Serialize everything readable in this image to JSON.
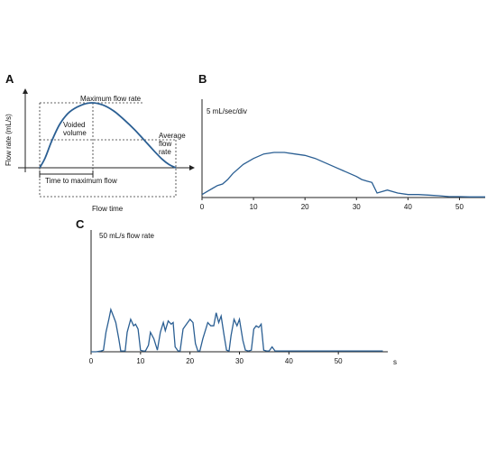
{
  "chart_data": [
    {
      "panel": "A",
      "type": "line",
      "ylabel": "Flow rate (mL/s)",
      "xlabel": "Flow time",
      "annotations": {
        "max": "Maximum flow rate",
        "voided": [
          "Voided",
          "volume"
        ],
        "average": [
          "Average",
          "flow",
          "rate"
        ],
        "ttm": "Time to maximum flow"
      },
      "x": [
        0,
        0.04,
        0.09,
        0.15,
        0.22,
        0.3,
        0.38,
        0.46,
        0.54,
        0.62,
        0.7,
        0.77,
        0.84,
        0.9,
        0.95,
        1.0
      ],
      "values": [
        0,
        0.15,
        0.42,
        0.68,
        0.86,
        0.96,
        1.0,
        0.97,
        0.88,
        0.74,
        0.58,
        0.42,
        0.26,
        0.13,
        0.05,
        0
      ]
    },
    {
      "panel": "B",
      "type": "line",
      "ylabel": "5 mL/sec/div",
      "xticks": [
        "0",
        "10",
        "20",
        "30",
        "40",
        "50"
      ],
      "xlim": [
        0,
        55
      ],
      "ylim": [
        0,
        30
      ],
      "x": [
        0,
        1,
        2,
        3,
        4,
        5,
        6,
        8,
        10,
        12,
        14,
        16,
        18,
        20,
        22,
        24,
        26,
        28,
        30,
        31,
        32,
        33,
        34,
        36,
        38,
        40,
        42,
        44,
        46,
        48,
        50,
        52,
        55
      ],
      "values": [
        1,
        2,
        3,
        4,
        4.5,
        6,
        8,
        11,
        13,
        14.5,
        15,
        15,
        14.5,
        14,
        13,
        11.5,
        10,
        8.5,
        7,
        6,
        5.5,
        5,
        1.5,
        2.5,
        1.5,
        1,
        1,
        0.8,
        0.6,
        0.3,
        0.3,
        0.2,
        0.2
      ]
    },
    {
      "panel": "C",
      "type": "line",
      "ylabel": "50 mL/s flow rate",
      "xticks": [
        "0",
        "10",
        "20",
        "30",
        "40",
        "50"
      ],
      "xunit": "s",
      "xlim": [
        0,
        60
      ],
      "ylim": [
        0,
        50
      ],
      "x": [
        0,
        1,
        2,
        2.5,
        3,
        3.6,
        4,
        4.5,
        5,
        5.6,
        6,
        6.5,
        6.9,
        7.3,
        8,
        8.6,
        9,
        9.5,
        10,
        10.5,
        11,
        11.6,
        12,
        12.7,
        13.4,
        14,
        14.6,
        15,
        15.6,
        16.2,
        16.6,
        17,
        17.6,
        18,
        18.6,
        19.3,
        20,
        20.6,
        21.1,
        21.6,
        22,
        22.6,
        23.2,
        23.6,
        24.2,
        24.8,
        25.3,
        25.8,
        26.3,
        26.9,
        27.4,
        27.9,
        28.3,
        28.9,
        29.5,
        30,
        30.7,
        31.2,
        31.8,
        32.4,
        32.9,
        33.4,
        33.9,
        34.4,
        34.9,
        35.5,
        36,
        36.6,
        37.2,
        37.6,
        38,
        38.3,
        40,
        45,
        50,
        55,
        59
      ],
      "values": [
        0,
        0,
        0.5,
        1,
        12,
        20,
        26,
        22,
        18,
        8,
        0.5,
        0.5,
        0.5,
        12,
        20,
        16,
        17,
        14,
        1,
        0.5,
        0.5,
        4,
        12,
        8,
        1,
        12,
        18,
        13,
        19,
        17,
        18,
        3,
        0.5,
        0.5,
        14,
        17,
        20,
        18,
        5,
        0.5,
        0.5,
        8,
        14,
        18,
        16,
        16,
        24,
        18,
        22,
        10,
        1,
        0.5,
        10,
        20,
        16,
        20,
        7,
        1,
        0.5,
        1,
        14,
        16,
        15,
        17,
        1,
        0.5,
        0.5,
        3,
        0.5,
        0.5,
        0.5,
        0.5,
        0.5,
        0.5,
        0.5,
        0.5,
        0.5
      ]
    }
  ]
}
